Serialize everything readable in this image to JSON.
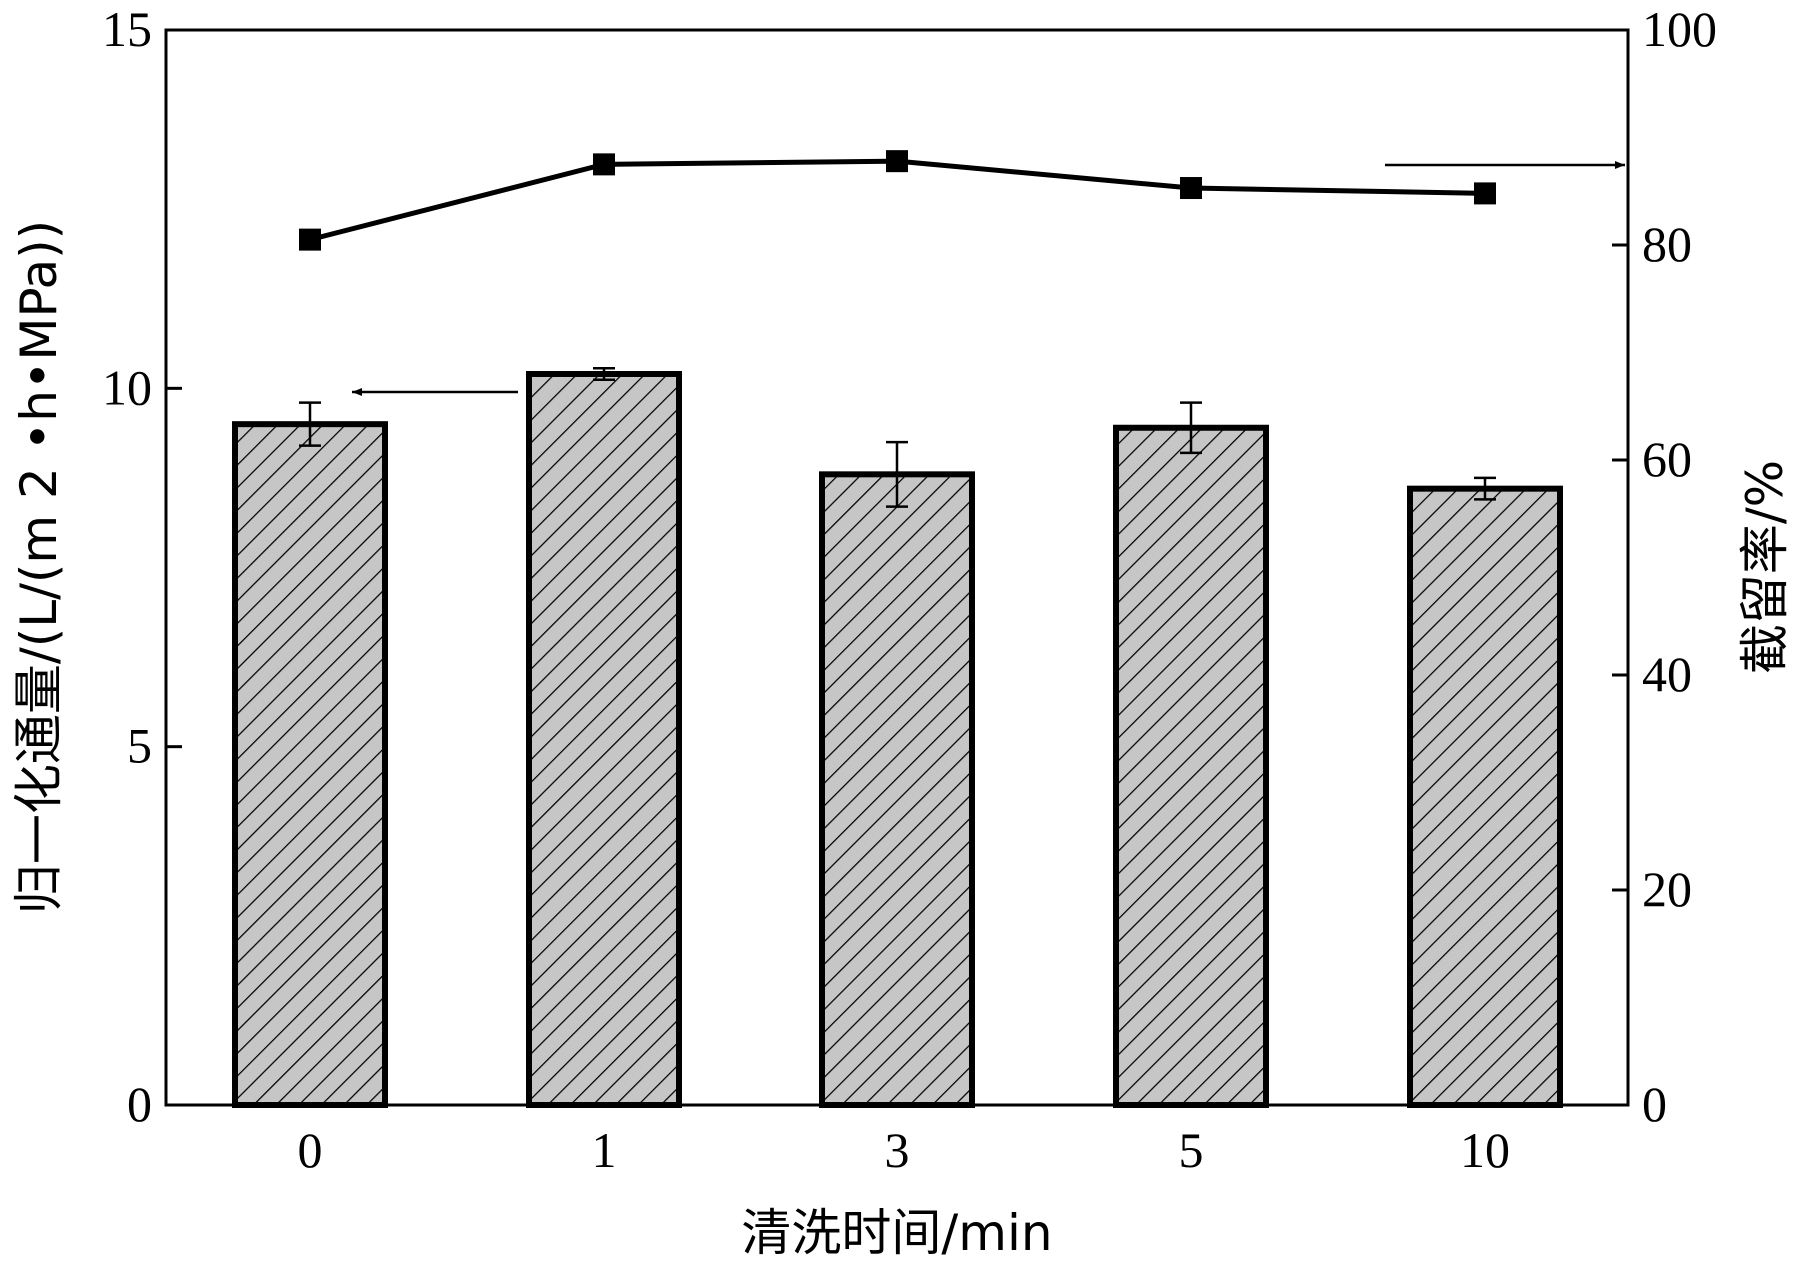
{
  "chart_data": {
    "type": "bar",
    "categories": [
      "0",
      "1",
      "3",
      "5",
      "10"
    ],
    "xlabel": "清洗时间/min",
    "ylabel_left": "归一化通量/(L/(m 2 •h•MPa))",
    "ylabel_right": "截留率/%",
    "ylim_left": [
      0,
      15
    ],
    "ylim_right": [
      0,
      100
    ],
    "yticks_left": [
      "0",
      "5",
      "10",
      "15"
    ],
    "yticks_right": [
      "0",
      "20",
      "40",
      "60",
      "80",
      "100"
    ],
    "series": [
      {
        "kind": "bar",
        "axis": "left",
        "values": [
          9.5,
          10.2,
          8.8,
          9.45,
          8.6
        ],
        "errors": [
          0.3,
          0.08,
          0.45,
          0.35,
          0.15
        ]
      },
      {
        "kind": "line",
        "axis": "right",
        "values": [
          80.5,
          87.5,
          87.8,
          85.3,
          84.8
        ]
      }
    ],
    "colors": {
      "bar_fill": "#c6c6c6",
      "stroke": "#000000"
    }
  }
}
